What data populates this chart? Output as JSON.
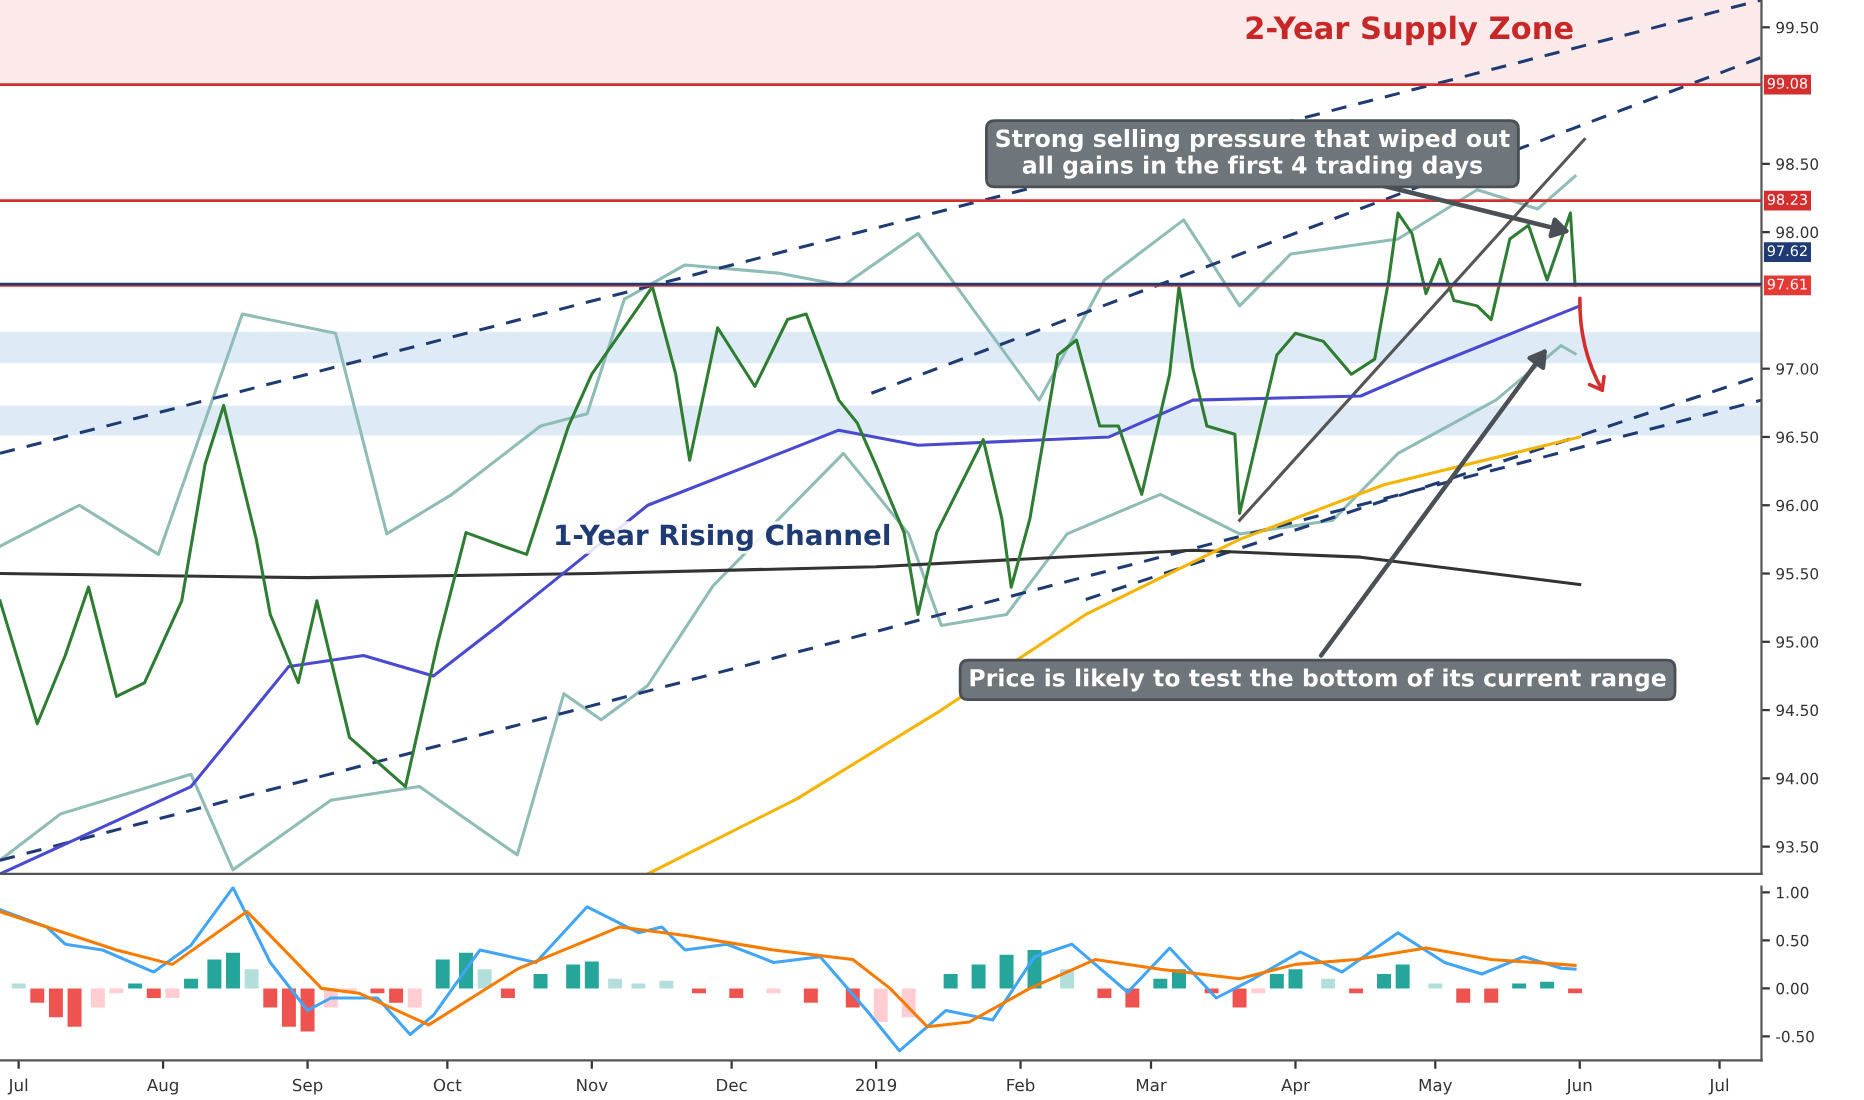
{
  "chart_data": [
    {
      "type": "line",
      "xlim": [
        "2018-06-27",
        "2019-07-10"
      ],
      "ylim": [
        93.3,
        99.7
      ],
      "tick_labels": "y",
      "yticks": [
        {
          "value": 93.5,
          "label": "93.50"
        },
        {
          "value": 94.0,
          "label": "94.00"
        },
        {
          "value": 94.5,
          "label": "94.50"
        },
        {
          "value": 95.0,
          "label": "95.00"
        },
        {
          "value": 95.5,
          "label": "95.50"
        },
        {
          "value": 96.0,
          "label": "96.00"
        },
        {
          "value": 96.5,
          "label": "96.50"
        },
        {
          "value": 97.0,
          "label": "97.00"
        },
        {
          "value": 98.0,
          "label": "98.00"
        },
        {
          "value": 98.5,
          "label": "98.50"
        },
        {
          "value": 99.5,
          "label": "99.50"
        }
      ],
      "bands": [
        {
          "axis": "y",
          "from": 99.08,
          "to": 99.7,
          "color": "#fbe3e3"
        },
        {
          "axis": "y",
          "from": 97.04,
          "to": 97.27,
          "color": "#d6e6f5"
        },
        {
          "axis": "y",
          "from": 96.51,
          "to": 96.73,
          "color": "#d6e6f5"
        }
      ],
      "ref_lines": [
        {
          "axis": "y",
          "value": 99.08,
          "label": "99.08",
          "color": "#d32f2f"
        },
        {
          "axis": "y",
          "value": 98.23,
          "label": "98.23",
          "color": "#d32f2f"
        },
        {
          "axis": "y",
          "value": 97.62,
          "label": "97.62",
          "color": "#1f3b73"
        },
        {
          "axis": "y",
          "value": 97.61,
          "label": "97.61",
          "color": "#e53935"
        }
      ],
      "series": [
        {
          "type": "line",
          "color": "#8fbcb6",
          "x": [
            "2018-06-27",
            "2018-07-14",
            "2018-07-31",
            "2018-08-18",
            "2018-09-07",
            "2018-09-18",
            "2018-10-02",
            "2018-10-21",
            "2018-10-31",
            "2018-11-08",
            "2018-11-21",
            "2018-12-11",
            "2018-12-25",
            "2019-01-10",
            "2019-02-05",
            "2019-02-19",
            "2019-03-08",
            "2019-03-20",
            "2019-03-31",
            "2019-04-23",
            "2019-05-10",
            "2019-05-23",
            "2019-05-31"
          ],
          "values": [
            95.7,
            96.0,
            95.64,
            97.4,
            97.26,
            95.79,
            96.08,
            96.58,
            96.67,
            97.51,
            97.76,
            97.7,
            97.61,
            97.99,
            96.77,
            97.65,
            98.09,
            97.46,
            97.84,
            97.95,
            98.31,
            98.17,
            98.41
          ]
        },
        {
          "type": "line",
          "color": "#8fbcb6",
          "x": [
            "2018-06-27",
            "2018-07-10",
            "2018-08-07",
            "2018-08-16",
            "2018-09-06",
            "2018-09-25",
            "2018-10-16",
            "2018-10-26",
            "2018-11-03",
            "2018-11-13",
            "2018-11-27",
            "2018-12-25",
            "2019-01-08",
            "2019-01-15",
            "2019-01-29",
            "2019-02-11",
            "2019-03-03",
            "2019-03-20",
            "2019-04-09",
            "2019-04-23",
            "2019-05-14",
            "2019-05-28",
            "2019-05-31"
          ],
          "values": [
            93.4,
            93.74,
            94.03,
            93.33,
            93.84,
            93.94,
            93.44,
            94.62,
            94.43,
            94.68,
            95.41,
            96.38,
            95.79,
            95.12,
            95.2,
            95.79,
            96.08,
            95.79,
            95.89,
            96.38,
            96.77,
            97.17,
            97.11
          ]
        },
        {
          "type": "line",
          "color": "#1f3b73",
          "line_style": "dashed",
          "x": [
            "2018-06-27",
            "2019-07-10"
          ],
          "values": [
            96.38,
            99.7
          ]
        },
        {
          "type": "line",
          "color": "#1f3b73",
          "line_style": "dashed",
          "x": [
            "2018-12-31",
            "2019-07-10"
          ],
          "values": [
            96.82,
            99.28
          ]
        },
        {
          "type": "line",
          "color": "#1f3b73",
          "line_style": "dashed",
          "x": [
            "2018-06-27",
            "2019-07-10"
          ],
          "values": [
            93.4,
            96.77
          ]
        },
        {
          "type": "line",
          "color": "#1f3b73",
          "line_style": "dashed",
          "x": [
            "2019-02-15",
            "2019-07-10"
          ],
          "values": [
            95.31,
            96.95
          ]
        },
        {
          "type": "line",
          "color": "#555555",
          "x": [
            "2019-03-20",
            "2019-06-02"
          ],
          "values": [
            95.89,
            98.68
          ]
        },
        {
          "type": "line",
          "color": "#333333",
          "x": [
            "2018-06-27",
            "2018-09-01",
            "2018-11-01",
            "2019-01-01",
            "2019-03-10",
            "2019-04-15",
            "2019-06-01"
          ],
          "values": [
            95.5,
            95.47,
            95.5,
            95.55,
            95.67,
            95.62,
            95.42
          ]
        },
        {
          "type": "line",
          "color": "#f4b400",
          "x": [
            "2018-11-13",
            "2018-12-15",
            "2019-01-15",
            "2019-02-15",
            "2019-03-20",
            "2019-04-20",
            "2019-06-01"
          ],
          "values": [
            93.3,
            93.85,
            94.5,
            95.2,
            95.75,
            96.15,
            96.5
          ]
        },
        {
          "type": "line",
          "color": "#4a4ad0",
          "x": [
            "2018-06-27",
            "2018-08-07",
            "2018-08-28",
            "2018-09-13",
            "2018-09-28",
            "2018-10-12",
            "2018-11-13",
            "2018-12-24",
            "2019-01-10",
            "2019-02-20",
            "2019-03-10",
            "2019-04-15",
            "2019-04-30",
            "2019-06-01"
          ],
          "values": [
            93.3,
            93.94,
            94.82,
            94.9,
            94.75,
            95.12,
            96.0,
            96.55,
            96.44,
            96.5,
            96.77,
            96.8,
            97.02,
            97.46
          ]
        },
        {
          "color": "#2e7d32",
          "x": [
            "2018-06-27",
            "2018-07-05",
            "2018-07-11",
            "2018-07-16",
            "2018-07-22",
            "2018-07-28",
            "2018-08-05",
            "2018-08-10",
            "2018-08-14",
            "2018-08-21",
            "2018-08-24",
            "2018-08-30",
            "2018-09-03",
            "2018-09-10",
            "2018-09-22",
            "2018-09-29",
            "2018-10-05",
            "2018-10-13",
            "2018-10-18",
            "2018-10-27",
            "2018-11-01",
            "2018-11-14",
            "2018-11-19",
            "2018-11-22",
            "2018-11-28",
            "2018-12-06",
            "2018-12-13",
            "2018-12-17",
            "2018-12-24",
            "2018-12-28",
            "2019-01-01",
            "2019-01-07",
            "2019-01-10",
            "2019-01-14",
            "2019-01-24",
            "2019-01-28",
            "2019-01-30",
            "2019-02-03",
            "2019-02-09",
            "2019-02-13",
            "2019-02-18",
            "2019-02-22",
            "2019-02-27",
            "2019-03-05",
            "2019-03-07",
            "2019-03-10",
            "2019-03-13",
            "2019-03-19",
            "2019-03-20",
            "2019-03-24",
            "2019-03-28",
            "2019-04-01",
            "2019-04-07",
            "2019-04-13",
            "2019-04-18",
            "2019-04-21",
            "2019-04-23",
            "2019-04-26",
            "2019-04-29",
            "2019-05-02",
            "2019-05-05",
            "2019-05-10",
            "2019-05-13",
            "2019-05-17",
            "2019-05-21",
            "2019-05-25",
            "2019-05-30",
            "2019-05-31"
          ],
          "values": [
            95.3,
            94.4,
            94.9,
            95.4,
            94.6,
            94.7,
            95.3,
            96.3,
            96.73,
            95.75,
            95.2,
            94.7,
            95.3,
            94.3,
            93.94,
            95.0,
            95.8,
            95.7,
            95.64,
            96.58,
            96.96,
            97.6,
            96.96,
            96.33,
            97.3,
            96.87,
            97.36,
            97.4,
            96.77,
            96.6,
            96.29,
            95.8,
            95.2,
            95.8,
            96.48,
            95.9,
            95.4,
            95.9,
            97.1,
            97.21,
            96.58,
            96.58,
            96.08,
            96.96,
            97.6,
            97.0,
            96.58,
            96.52,
            95.94,
            96.52,
            97.1,
            97.26,
            97.2,
            96.96,
            97.07,
            97.65,
            98.14,
            97.99,
            97.55,
            97.8,
            97.5,
            97.46,
            97.36,
            97.95,
            98.05,
            97.65,
            98.14,
            97.61
          ]
        }
      ],
      "annotations": [
        "2-Year Supply Zone",
        {
          "text": "Strong selling pressure that wiped out\nall gains in the first 4 trading days",
          "x": "2019-05-30",
          "y": 98.0
        },
        {
          "text": "Price is likely to test the bottom of its current range",
          "x": "2019-05-25",
          "y": 97.15
        },
        "1-Year Rising Channel"
      ]
    },
    {
      "type": "bar",
      "xlim": [
        "2018-06-27",
        "2019-07-10"
      ],
      "ylim": [
        -0.75,
        1.06
      ],
      "yticks": [
        {
          "value": -0.5,
          "label": "-0.50"
        },
        {
          "value": 0.0,
          "label": "0.00"
        },
        {
          "value": 0.5,
          "label": "0.50"
        },
        {
          "value": 1.0,
          "label": "1.00"
        }
      ],
      "xticks": [
        {
          "value": "2018-07-01",
          "label": "Jul"
        },
        {
          "value": "2018-08-01",
          "label": "Aug"
        },
        {
          "value": "2018-09-01",
          "label": "Sep"
        },
        {
          "value": "2018-10-01",
          "label": "Oct"
        },
        {
          "value": "2018-11-01",
          "label": "Nov"
        },
        {
          "value": "2018-12-01",
          "label": "Dec"
        },
        {
          "value": "2019-01-01",
          "label": "2019"
        },
        {
          "value": "2019-02-01",
          "label": "Feb"
        },
        {
          "value": "2019-03-01",
          "label": "Mar"
        },
        {
          "value": "2019-04-01",
          "label": "Apr"
        },
        {
          "value": "2019-05-01",
          "label": "May"
        },
        {
          "value": "2019-06-01",
          "label": "Jun"
        },
        {
          "value": "2019-07-01",
          "label": "Jul"
        }
      ],
      "series": [
        {
          "x": [
            "2018-07-01",
            "2018-07-05",
            "2018-07-09",
            "2018-07-13",
            "2018-07-18",
            "2018-07-22",
            "2018-07-26",
            "2018-07-30",
            "2018-08-03",
            "2018-08-07",
            "2018-08-12",
            "2018-08-16",
            "2018-08-20",
            "2018-08-24",
            "2018-08-28",
            "2018-09-01",
            "2018-09-06",
            "2018-09-10",
            "2018-09-16",
            "2018-09-20",
            "2018-09-24",
            "2018-09-30",
            "2018-10-05",
            "2018-10-09",
            "2018-10-14",
            "2018-10-21",
            "2018-10-28",
            "2018-11-01",
            "2018-11-06",
            "2018-11-11",
            "2018-11-17",
            "2018-11-24",
            "2018-12-02",
            "2018-12-10",
            "2018-12-18",
            "2018-12-27",
            "2019-01-02",
            "2019-01-08",
            "2019-01-17",
            "2019-01-23",
            "2019-01-29",
            "2019-02-04",
            "2019-02-11",
            "2019-02-19",
            "2019-02-25",
            "2019-03-03",
            "2019-03-07",
            "2019-03-14",
            "2019-03-20",
            "2019-03-24",
            "2019-03-28",
            "2019-04-01",
            "2019-04-08",
            "2019-04-14",
            "2019-04-20",
            "2019-04-24",
            "2019-05-01",
            "2019-05-07",
            "2019-05-13",
            "2019-05-19",
            "2019-05-25",
            "2019-05-31"
          ],
          "values": [
            0.05,
            -0.15,
            -0.3,
            -0.4,
            -0.2,
            -0.05,
            0.05,
            -0.1,
            -0.1,
            0.1,
            0.3,
            0.37,
            0.2,
            -0.2,
            -0.4,
            -0.45,
            -0.2,
            -0.05,
            -0.05,
            -0.15,
            -0.2,
            0.3,
            0.37,
            0.2,
            -0.1,
            0.15,
            0.25,
            0.28,
            0.1,
            0.05,
            0.08,
            -0.05,
            -0.1,
            -0.05,
            -0.15,
            -0.2,
            -0.35,
            -0.3,
            0.15,
            0.25,
            0.35,
            0.4,
            0.2,
            -0.1,
            -0.2,
            0.1,
            0.2,
            -0.05,
            -0.2,
            -0.05,
            0.15,
            0.2,
            0.1,
            -0.05,
            0.15,
            0.25,
            0.05,
            -0.15,
            -0.15,
            0.05,
            0.07,
            -0.05
          ],
          "colors": [
            "#b2dfdb",
            "#ef5350",
            "#ef5350",
            "#ef5350",
            "#ffcdd2",
            "#ffcdd2",
            "#26a69a",
            "#ef5350",
            "#ffcdd2",
            "#26a69a",
            "#26a69a",
            "#26a69a",
            "#b2dfdb",
            "#ef5350",
            "#ef5350",
            "#ef5350",
            "#ffcdd2",
            "#ffcdd2",
            "#ef5350",
            "#ef5350",
            "#ffcdd2",
            "#26a69a",
            "#26a69a",
            "#b2dfdb",
            "#ef5350",
            "#26a69a",
            "#26a69a",
            "#26a69a",
            "#b2dfdb",
            "#b2dfdb",
            "#b2dfdb",
            "#ef5350",
            "#ef5350",
            "#ffcdd2",
            "#ef5350",
            "#ef5350",
            "#ffcdd2",
            "#ffcdd2",
            "#26a69a",
            "#26a69a",
            "#26a69a",
            "#26a69a",
            "#b2dfdb",
            "#ef5350",
            "#ef5350",
            "#26a69a",
            "#26a69a",
            "#ef5350",
            "#ef5350",
            "#ffcdd2",
            "#26a69a",
            "#26a69a",
            "#b2dfdb",
            "#ef5350",
            "#26a69a",
            "#26a69a",
            "#b2dfdb",
            "#ef5350",
            "#ef5350",
            "#26a69a",
            "#26a69a",
            "#ef5350"
          ]
        },
        {
          "type": "line",
          "color": "#42a5f5",
          "x": [
            "2018-06-27",
            "2018-07-07",
            "2018-07-11",
            "2018-07-19",
            "2018-07-30",
            "2018-08-07",
            "2018-08-16",
            "2018-08-24",
            "2018-09-01",
            "2018-09-06",
            "2018-09-16",
            "2018-09-23",
            "2018-09-28",
            "2018-10-08",
            "2018-10-20",
            "2018-10-31",
            "2018-11-11",
            "2018-11-16",
            "2018-11-21",
            "2018-11-30",
            "2018-12-10",
            "2018-12-20",
            "2018-12-30",
            "2019-01-06",
            "2019-01-16",
            "2019-01-26",
            "2019-02-04",
            "2019-02-12",
            "2019-02-24",
            "2019-03-05",
            "2019-03-15",
            "2019-03-23",
            "2019-04-02",
            "2019-04-11",
            "2019-04-23",
            "2019-05-03",
            "2019-05-11",
            "2019-05-20",
            "2019-05-28",
            "2019-05-31"
          ],
          "values": [
            0.82,
            0.64,
            0.46,
            0.4,
            0.17,
            0.45,
            1.05,
            0.27,
            -0.23,
            -0.1,
            -0.1,
            -0.48,
            -0.28,
            0.4,
            0.27,
            0.85,
            0.58,
            0.64,
            0.4,
            0.46,
            0.27,
            0.33,
            -0.23,
            -0.65,
            -0.23,
            -0.33,
            0.33,
            0.46,
            -0.04,
            0.42,
            -0.1,
            0.1,
            0.38,
            0.17,
            0.58,
            0.27,
            0.15,
            0.33,
            0.21,
            0.2
          ]
        },
        {
          "type": "line",
          "color": "#f57c00",
          "x": [
            "2018-06-27",
            "2018-07-22",
            "2018-08-03",
            "2018-08-19",
            "2018-09-04",
            "2018-09-12",
            "2018-09-27",
            "2018-10-16",
            "2018-10-31",
            "2018-11-07",
            "2018-11-21",
            "2018-12-10",
            "2018-12-27",
            "2019-01-04",
            "2019-01-12",
            "2019-01-21",
            "2019-02-03",
            "2019-02-17",
            "2019-03-03",
            "2019-03-20",
            "2019-04-01",
            "2019-04-14",
            "2019-04-29",
            "2019-05-13",
            "2019-05-28",
            "2019-05-31"
          ],
          "values": [
            0.8,
            0.4,
            0.25,
            0.8,
            0.0,
            -0.05,
            -0.38,
            0.2,
            0.5,
            0.64,
            0.55,
            0.4,
            0.3,
            0.0,
            -0.4,
            -0.35,
            0.0,
            0.3,
            0.2,
            0.1,
            0.25,
            0.3,
            0.42,
            0.3,
            0.25,
            0.24
          ]
        }
      ]
    }
  ]
}
